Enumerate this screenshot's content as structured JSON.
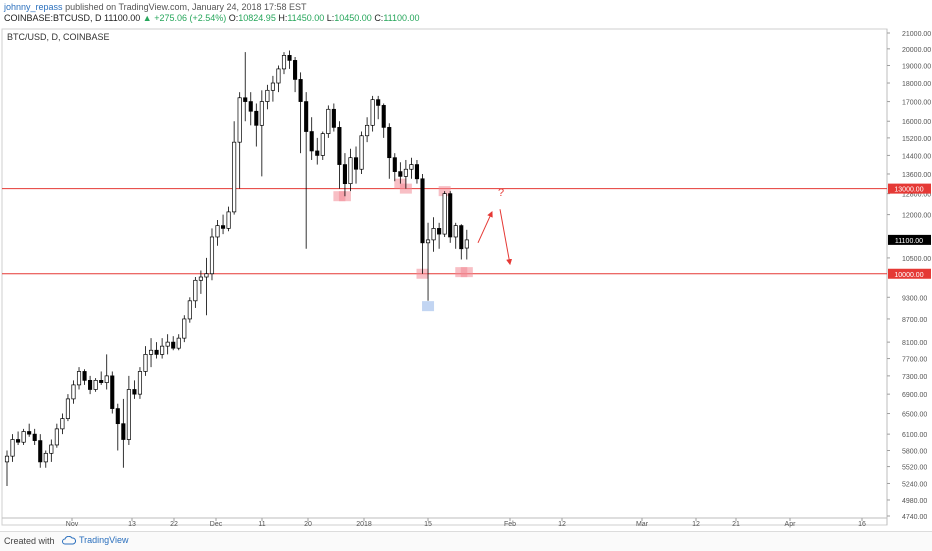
{
  "header": {
    "author": "johnny_repass",
    "published_text": "published on TradingView.com, January 24, 2018 17:58 EST",
    "symbol": "COINBASE:BTCUSD, D",
    "last_price": "11100.00",
    "change": "+275.06 (+2.54%)",
    "open_label": "O:",
    "open_value": "10824.95",
    "high_label": "H:",
    "high_value": "11450.00",
    "low_label": "L:",
    "low_value": "10450.00",
    "close_label": "C:",
    "close_value": "11100.00"
  },
  "footer": {
    "created_with": "Created with",
    "brand": "TradingView"
  },
  "colors": {
    "up": "#ffffff",
    "down": "#000000",
    "wick": "#000000",
    "line": "#e53935",
    "last": "#000000",
    "highlight_red": "#f28b96",
    "highlight_blue": "#8fb3e8"
  },
  "chart_data": {
    "type": "candlestick",
    "title": "BTC/USD, D, COINBASE",
    "x_tick_labels": [
      "Nov",
      "13",
      "22",
      "Dec",
      "11",
      "20",
      "2018",
      "15",
      "Feb",
      "12",
      "Mar",
      "12",
      "21",
      "Apr",
      "16"
    ],
    "y_tick_labels": [
      "4740.00",
      "4980.00",
      "5240.00",
      "5520.00",
      "5800.00",
      "6100.00",
      "6500.00",
      "6900.00",
      "7300.00",
      "7700.00",
      "8100.00",
      "8700.00",
      "9300.00",
      "10500.00",
      "12000.00",
      "12800.00",
      "13600.00",
      "14400.00",
      "15200.00",
      "16000.00",
      "17000.00",
      "18000.00",
      "19000.00",
      "20000.00",
      "21000.00"
    ],
    "ylim": [
      4740,
      21000
    ],
    "scale": "log",
    "horizontal_lines": [
      {
        "value": 13000,
        "label": "13000.00"
      },
      {
        "value": 10000,
        "label": "10000.00"
      }
    ],
    "last_value": {
      "value": 11100,
      "label": "11100.00"
    },
    "annotations": [
      {
        "type": "text",
        "text": "?"
      },
      {
        "type": "arrow",
        "direction": "up",
        "from": 11000,
        "to": 12100
      },
      {
        "type": "arrow",
        "direction": "down",
        "from": 12200,
        "to": 10300
      }
    ],
    "candles": [
      [
        5600,
        5800,
        5200,
        5700
      ],
      [
        5700,
        6100,
        5600,
        6000
      ],
      [
        6000,
        6150,
        5900,
        5950
      ],
      [
        5950,
        6200,
        5900,
        6150
      ],
      [
        6150,
        6300,
        6050,
        6100
      ],
      [
        6100,
        6200,
        5900,
        5980
      ],
      [
        5980,
        6100,
        5500,
        5600
      ],
      [
        5600,
        5800,
        5500,
        5750
      ],
      [
        5750,
        6000,
        5600,
        5900
      ],
      [
        5900,
        6300,
        5850,
        6200
      ],
      [
        6200,
        6500,
        6100,
        6400
      ],
      [
        6400,
        6900,
        6350,
        6800
      ],
      [
        6800,
        7200,
        6700,
        7100
      ],
      [
        7100,
        7500,
        7000,
        7400
      ],
      [
        7400,
        7450,
        7100,
        7200
      ],
      [
        7200,
        7300,
        6900,
        7000
      ],
      [
        7000,
        7250,
        6950,
        7200
      ],
      [
        7200,
        7400,
        7100,
        7150
      ],
      [
        7150,
        7800,
        7000,
        7300
      ],
      [
        7300,
        7400,
        6500,
        6600
      ],
      [
        6600,
        6700,
        5800,
        6300
      ],
      [
        6300,
        6800,
        5500,
        6000
      ],
      [
        6000,
        7300,
        5900,
        7000
      ],
      [
        7000,
        7200,
        6800,
        6900
      ],
      [
        6900,
        7500,
        6800,
        7400
      ],
      [
        7400,
        8000,
        7300,
        7800
      ],
      [
        7800,
        8200,
        7500,
        7900
      ],
      [
        7900,
        8100,
        7700,
        7800
      ],
      [
        7800,
        8200,
        7700,
        8000
      ],
      [
        8000,
        8300,
        7800,
        8100
      ],
      [
        8100,
        8250,
        7900,
        7950
      ],
      [
        7950,
        8300,
        7900,
        8200
      ],
      [
        8200,
        8800,
        8100,
        8700
      ],
      [
        8700,
        9300,
        8600,
        9200
      ],
      [
        9200,
        9900,
        9000,
        9800
      ],
      [
        9800,
        10100,
        9400,
        9900
      ],
      [
        9900,
        10500,
        8800,
        10000
      ],
      [
        10000,
        11500,
        9800,
        11200
      ],
      [
        11200,
        11800,
        10900,
        11600
      ],
      [
        11600,
        12000,
        11300,
        11500
      ],
      [
        11500,
        12300,
        11400,
        12100
      ],
      [
        12100,
        16000,
        12000,
        15000
      ],
      [
        15000,
        17500,
        13000,
        17200
      ],
      [
        17200,
        19800,
        16000,
        17000
      ],
      [
        17000,
        17500,
        15800,
        16500
      ],
      [
        16500,
        16900,
        14800,
        15800
      ],
      [
        15800,
        17600,
        13500,
        17000
      ],
      [
        17000,
        17900,
        16600,
        17600
      ],
      [
        17600,
        18400,
        17000,
        18000
      ],
      [
        18000,
        19000,
        17500,
        18800
      ],
      [
        18800,
        19800,
        18500,
        19600
      ],
      [
        19600,
        19900,
        18800,
        19300
      ],
      [
        19300,
        19500,
        17500,
        18200
      ],
      [
        18200,
        18600,
        14500,
        17000
      ],
      [
        17000,
        17500,
        10800,
        15500
      ],
      [
        15500,
        16200,
        14200,
        14600
      ],
      [
        14600,
        15200,
        14000,
        14400
      ],
      [
        14400,
        15500,
        14200,
        15400
      ],
      [
        15400,
        16800,
        15200,
        16600
      ],
      [
        16600,
        16900,
        15500,
        15700
      ],
      [
        15700,
        16000,
        13000,
        14000
      ],
      [
        14000,
        14500,
        12700,
        13200
      ],
      [
        13200,
        14700,
        12900,
        14300
      ],
      [
        14300,
        14800,
        13200,
        13800
      ],
      [
        13800,
        15500,
        13600,
        15300
      ],
      [
        15300,
        16200,
        15000,
        15800
      ],
      [
        15800,
        17300,
        15500,
        17100
      ],
      [
        17100,
        17300,
        16100,
        16800
      ],
      [
        16800,
        16900,
        15200,
        15700
      ],
      [
        15700,
        15900,
        13400,
        14300
      ],
      [
        14300,
        14500,
        13300,
        13700
      ],
      [
        13700,
        14100,
        13200,
        13500
      ],
      [
        13500,
        14200,
        13000,
        13800
      ],
      [
        13800,
        14300,
        13400,
        14000
      ],
      [
        14000,
        14200,
        13200,
        13400
      ],
      [
        13400,
        13600,
        10000,
        11000
      ],
      [
        11000,
        11700,
        9200,
        11100
      ],
      [
        11100,
        11900,
        10700,
        11500
      ],
      [
        11500,
        11700,
        10800,
        11300
      ],
      [
        11300,
        12900,
        11200,
        12800
      ],
      [
        12800,
        12900,
        11000,
        11200
      ],
      [
        11200,
        11700,
        10800,
        11600
      ],
      [
        11600,
        11650,
        10450,
        10800
      ],
      [
        10824,
        11450,
        10450,
        11100
      ]
    ]
  }
}
